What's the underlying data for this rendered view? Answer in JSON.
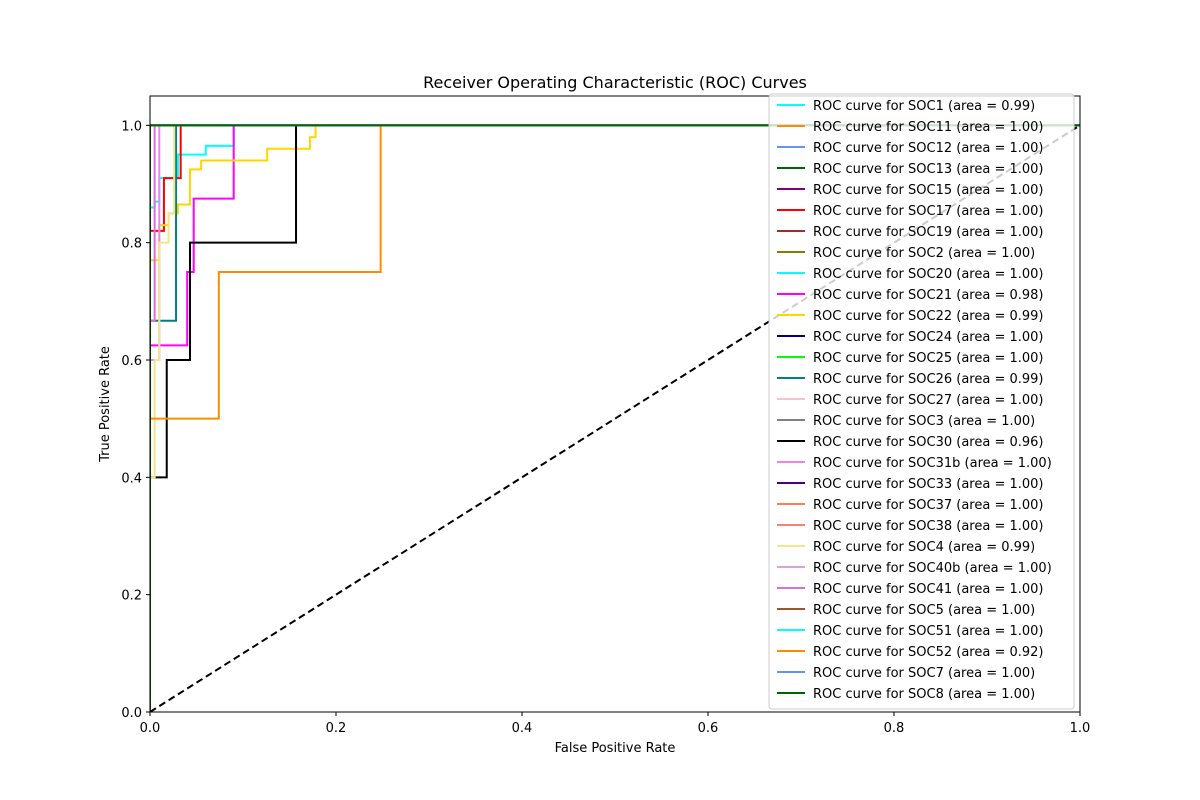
{
  "chart_data": {
    "type": "line",
    "title": "Receiver Operating Characteristic (ROC) Curves",
    "xlabel": "False Positive Rate",
    "ylabel": "True Positive Rate",
    "xlim": [
      0.0,
      1.0
    ],
    "ylim": [
      0.0,
      1.05
    ],
    "xticks": [
      "0.0",
      "0.2",
      "0.4",
      "0.6",
      "0.8",
      "1.0"
    ],
    "yticks": [
      "0.0",
      "0.2",
      "0.4",
      "0.6",
      "0.8",
      "1.0"
    ],
    "grid": false,
    "legend_position": "right",
    "reference_line": {
      "x": [
        0,
        1
      ],
      "y": [
        0,
        1
      ],
      "color": "#000000",
      "style": "dashed"
    },
    "series": [
      {
        "name": "ROC curve for SOC1 (area = 0.99)",
        "color": "#00ffff",
        "x": [
          0,
          0,
          0.005,
          0.005,
          0.01,
          0.01,
          0.03,
          0.03,
          0.06,
          0.06,
          0.09,
          0.09,
          1
        ],
        "y": [
          0,
          0.86,
          0.86,
          0.87,
          0.87,
          0.91,
          0.91,
          0.95,
          0.95,
          0.965,
          0.965,
          1.0,
          1.0
        ]
      },
      {
        "name": "ROC curve for SOC11 (area = 1.00)",
        "color": "#ff8c00",
        "x": [
          0,
          0,
          1
        ],
        "y": [
          0,
          1,
          1
        ]
      },
      {
        "name": "ROC curve for SOC12 (area = 1.00)",
        "color": "#6495ed",
        "x": [
          0,
          0,
          1
        ],
        "y": [
          0,
          1,
          1
        ]
      },
      {
        "name": "ROC curve for SOC13 (area = 1.00)",
        "color": "#006400",
        "x": [
          0,
          0,
          1
        ],
        "y": [
          0,
          1,
          1
        ]
      },
      {
        "name": "ROC curve for SOC15 (area = 1.00)",
        "color": "#800080",
        "x": [
          0,
          0,
          1
        ],
        "y": [
          0,
          1,
          1
        ]
      },
      {
        "name": "ROC curve for SOC17 (area = 1.00)",
        "color": "#ff0000",
        "x": [
          0,
          0,
          0.015,
          0.015,
          0.025,
          0.025,
          0.033,
          0.033,
          1
        ],
        "y": [
          0,
          0.82,
          0.82,
          0.91,
          0.91,
          0.91,
          0.91,
          1.0,
          1.0
        ]
      },
      {
        "name": "ROC curve for SOC19 (area = 1.00)",
        "color": "#a52a2a",
        "x": [
          0,
          0,
          1
        ],
        "y": [
          0,
          1,
          1
        ]
      },
      {
        "name": "ROC curve for SOC2 (area = 1.00)",
        "color": "#808000",
        "x": [
          0,
          0,
          1
        ],
        "y": [
          0,
          1,
          1
        ]
      },
      {
        "name": "ROC curve for SOC20 (area = 1.00)",
        "color": "#00ffff",
        "x": [
          0,
          0,
          1
        ],
        "y": [
          0,
          1,
          1
        ]
      },
      {
        "name": "ROC curve for SOC21 (area = 0.98)",
        "color": "#ff00ff",
        "x": [
          0,
          0,
          0.04,
          0.04,
          0.047,
          0.047,
          0.09,
          0.09,
          1
        ],
        "y": [
          0,
          0.625,
          0.625,
          0.75,
          0.75,
          0.875,
          0.875,
          1.0,
          1.0
        ]
      },
      {
        "name": "ROC curve for SOC22 (area = 0.99)",
        "color": "#ffd700",
        "x": [
          0,
          0,
          0.01,
          0.01,
          0.02,
          0.02,
          0.03,
          0.03,
          0.043,
          0.043,
          0.055,
          0.055,
          0.126,
          0.126,
          0.172,
          0.172,
          0.178,
          0.178,
          1
        ],
        "y": [
          0,
          0.77,
          0.77,
          0.83,
          0.83,
          0.85,
          0.85,
          0.865,
          0.865,
          0.925,
          0.925,
          0.94,
          0.94,
          0.96,
          0.96,
          0.98,
          0.98,
          1.0,
          1.0
        ]
      },
      {
        "name": "ROC curve for SOC24 (area = 1.00)",
        "color": "#000080",
        "x": [
          0,
          0,
          1
        ],
        "y": [
          0,
          1,
          1
        ]
      },
      {
        "name": "ROC curve for SOC25 (area = 1.00)",
        "color": "#00ff00",
        "x": [
          0,
          0,
          1
        ],
        "y": [
          0,
          1,
          1
        ]
      },
      {
        "name": "ROC curve for SOC26 (area = 0.99)",
        "color": "#008080",
        "x": [
          0,
          0,
          0.028,
          0.028,
          1
        ],
        "y": [
          0,
          0.667,
          0.667,
          1.0,
          1.0
        ]
      },
      {
        "name": "ROC curve for SOC27 (area = 1.00)",
        "color": "#ffc0cb",
        "x": [
          0,
          0,
          1
        ],
        "y": [
          0,
          1,
          1
        ]
      },
      {
        "name": "ROC curve for SOC3 (area = 1.00)",
        "color": "#808080",
        "x": [
          0,
          0,
          1
        ],
        "y": [
          0,
          1,
          1
        ]
      },
      {
        "name": "ROC curve for SOC30 (area = 0.96)",
        "color": "#000000",
        "x": [
          0,
          0,
          0.018,
          0.018,
          0.043,
          0.043,
          0.157,
          0.157,
          1
        ],
        "y": [
          0,
          0.4,
          0.4,
          0.6,
          0.6,
          0.8,
          0.8,
          1.0,
          1.0
        ]
      },
      {
        "name": "ROC curve for SOC31b (area = 1.00)",
        "color": "#ee82ee",
        "x": [
          0,
          0,
          0.01,
          0.01,
          1
        ],
        "y": [
          0,
          0.6,
          0.6,
          1.0,
          1.0
        ]
      },
      {
        "name": "ROC curve for SOC33 (area = 1.00)",
        "color": "#4b0082",
        "x": [
          0,
          0,
          1
        ],
        "y": [
          0,
          1,
          1
        ]
      },
      {
        "name": "ROC curve for SOC37 (area = 1.00)",
        "color": "#ff7f50",
        "x": [
          0,
          0,
          1
        ],
        "y": [
          0,
          1,
          1
        ]
      },
      {
        "name": "ROC curve for SOC38 (area = 1.00)",
        "color": "#fa8072",
        "x": [
          0,
          0,
          1
        ],
        "y": [
          0,
          1,
          1
        ]
      },
      {
        "name": "ROC curve for SOC4 (area = 0.99)",
        "color": "#f0e68c",
        "x": [
          0,
          0,
          0.005,
          0.005,
          0.01,
          0.01,
          0.02,
          0.02,
          0.026,
          0.026,
          1
        ],
        "y": [
          0,
          0.4,
          0.4,
          0.6,
          0.6,
          0.8,
          0.8,
          0.85,
          0.85,
          1.0,
          1.0
        ]
      },
      {
        "name": "ROC curve for SOC40b (area = 1.00)",
        "color": "#dda0dd",
        "x": [
          0,
          0,
          1
        ],
        "y": [
          0,
          1,
          1
        ]
      },
      {
        "name": "ROC curve for SOC41 (area = 1.00)",
        "color": "#da70d6",
        "x": [
          0,
          0,
          0.005,
          0.005,
          1
        ],
        "y": [
          0,
          0.667,
          0.667,
          1.0,
          1.0
        ]
      },
      {
        "name": "ROC curve for SOC5 (area = 1.00)",
        "color": "#a0522d",
        "x": [
          0,
          0,
          1
        ],
        "y": [
          0,
          1,
          1
        ]
      },
      {
        "name": "ROC curve for SOC51 (area = 1.00)",
        "color": "#00ffff",
        "x": [
          0,
          0,
          1
        ],
        "y": [
          0,
          1,
          1
        ]
      },
      {
        "name": "ROC curve for SOC52 (area = 0.92)",
        "color": "#ff8c00",
        "x": [
          0,
          0,
          0.074,
          0.074,
          0.248,
          0.248,
          1
        ],
        "y": [
          0,
          0.5,
          0.5,
          0.75,
          0.75,
          1.0,
          1.0
        ]
      },
      {
        "name": "ROC curve for SOC7 (area = 1.00)",
        "color": "#6495ed",
        "x": [
          0,
          0,
          1
        ],
        "y": [
          0,
          1,
          1
        ]
      },
      {
        "name": "ROC curve for SOC8 (area = 1.00)",
        "color": "#006400",
        "x": [
          0,
          0,
          1
        ],
        "y": [
          0,
          1,
          1
        ]
      }
    ]
  }
}
